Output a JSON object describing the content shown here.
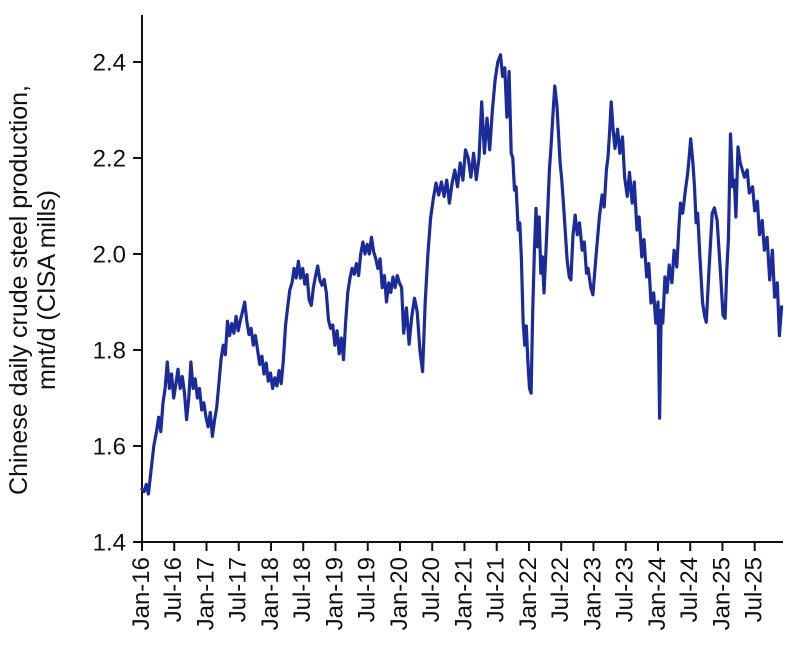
{
  "figure": {
    "background": "#ffffff",
    "axis_color": "#111111",
    "gridlines": false,
    "legend": false
  },
  "chart_data": {
    "type": "line",
    "title": "",
    "xlabel": "",
    "ylabel_line1": "Chinese daily crude steel production,",
    "ylabel_line2": "mnt/d (CISA mills)",
    "series_name": "Chinese daily crude steel production, CISA mills (mnt/d)",
    "line_color": "#1B2B99",
    "ylim": [
      1.4,
      2.45
    ],
    "y_ticks": [
      "1.4",
      "1.6",
      "1.8",
      "2.0",
      "2.2",
      "2.4"
    ],
    "x_tick_labels": [
      "Jan-16",
      "Jul-16",
      "Jan-17",
      "Jul-17",
      "Jan-18",
      "Jul-18",
      "Jan-19",
      "Jul-19",
      "Jan-20",
      "Jul-20",
      "Jan-21",
      "Jul-21",
      "Jan-22",
      "Jul-22",
      "Jan-23",
      "Jul-23",
      "Jan-24",
      "Jul-24",
      "Jan-25",
      "Jul-25"
    ],
    "x_unit": "months since Jan-2016",
    "x_tick_step_months": 6,
    "points": [
      [
        0,
        1.51
      ],
      [
        0.4,
        1.505
      ],
      [
        0.8,
        1.52
      ],
      [
        1.2,
        1.5
      ],
      [
        1.7,
        1.55
      ],
      [
        2.2,
        1.6
      ],
      [
        2.7,
        1.63
      ],
      [
        3.1,
        1.66
      ],
      [
        3.5,
        1.63
      ],
      [
        3.9,
        1.69
      ],
      [
        4.3,
        1.72
      ],
      [
        4.7,
        1.775
      ],
      [
        5.1,
        1.72
      ],
      [
        5.5,
        1.75
      ],
      [
        5.9,
        1.7
      ],
      [
        6.3,
        1.73
      ],
      [
        6.7,
        1.76
      ],
      [
        7.1,
        1.72
      ],
      [
        7.5,
        1.745
      ],
      [
        7.9,
        1.71
      ],
      [
        8.3,
        1.655
      ],
      [
        8.7,
        1.7
      ],
      [
        9.1,
        1.775
      ],
      [
        9.5,
        1.72
      ],
      [
        9.9,
        1.74
      ],
      [
        10.3,
        1.7
      ],
      [
        10.7,
        1.72
      ],
      [
        11.1,
        1.675
      ],
      [
        11.5,
        1.69
      ],
      [
        11.9,
        1.66
      ],
      [
        12.3,
        1.64
      ],
      [
        12.7,
        1.67
      ],
      [
        13.1,
        1.62
      ],
      [
        13.5,
        1.655
      ],
      [
        13.9,
        1.68
      ],
      [
        14.3,
        1.73
      ],
      [
        14.7,
        1.78
      ],
      [
        15.1,
        1.81
      ],
      [
        15.5,
        1.79
      ],
      [
        15.9,
        1.86
      ],
      [
        16.3,
        1.83
      ],
      [
        16.7,
        1.855
      ],
      [
        17.1,
        1.835
      ],
      [
        17.5,
        1.87
      ],
      [
        17.9,
        1.84
      ],
      [
        18.3,
        1.862
      ],
      [
        18.7,
        1.88
      ],
      [
        19.1,
        1.9
      ],
      [
        19.5,
        1.86
      ],
      [
        19.9,
        1.832
      ],
      [
        20.3,
        1.845
      ],
      [
        20.7,
        1.81
      ],
      [
        21.1,
        1.83
      ],
      [
        21.5,
        1.8
      ],
      [
        21.9,
        1.77
      ],
      [
        22.3,
        1.787
      ],
      [
        22.7,
        1.75
      ],
      [
        23.1,
        1.773
      ],
      [
        23.5,
        1.735
      ],
      [
        23.9,
        1.752
      ],
      [
        24.3,
        1.72
      ],
      [
        24.7,
        1.742
      ],
      [
        25.1,
        1.725
      ],
      [
        25.5,
        1.757
      ],
      [
        25.9,
        1.73
      ],
      [
        26.3,
        1.78
      ],
      [
        26.7,
        1.85
      ],
      [
        27.1,
        1.89
      ],
      [
        27.5,
        1.925
      ],
      [
        27.9,
        1.94
      ],
      [
        28.3,
        1.97
      ],
      [
        28.7,
        1.95
      ],
      [
        29.1,
        1.985
      ],
      [
        29.5,
        1.95
      ],
      [
        29.9,
        1.97
      ],
      [
        30.3,
        1.937
      ],
      [
        30.7,
        1.957
      ],
      [
        31.1,
        1.905
      ],
      [
        31.5,
        1.893
      ],
      [
        31.9,
        1.93
      ],
      [
        32.3,
        1.955
      ],
      [
        32.7,
        1.975
      ],
      [
        33.1,
        1.945
      ],
      [
        33.5,
        1.935
      ],
      [
        33.9,
        1.947
      ],
      [
        34.3,
        1.92
      ],
      [
        34.7,
        1.862
      ],
      [
        35.1,
        1.845
      ],
      [
        35.5,
        1.852
      ],
      [
        35.9,
        1.81
      ],
      [
        36.3,
        1.84
      ],
      [
        36.7,
        1.792
      ],
      [
        37.1,
        1.825
      ],
      [
        37.5,
        1.78
      ],
      [
        37.9,
        1.86
      ],
      [
        38.3,
        1.92
      ],
      [
        38.7,
        1.95
      ],
      [
        39.1,
        1.97
      ],
      [
        39.5,
        1.958
      ],
      [
        39.9,
        1.98
      ],
      [
        40.3,
        1.955
      ],
      [
        40.7,
        2.0
      ],
      [
        41.1,
        2.025
      ],
      [
        41.5,
        2.0
      ],
      [
        41.9,
        2.02
      ],
      [
        42.3,
        2.0
      ],
      [
        42.7,
        2.035
      ],
      [
        43.1,
        2.005
      ],
      [
        43.5,
        1.99
      ],
      [
        43.9,
        1.97
      ],
      [
        44.3,
        1.99
      ],
      [
        44.7,
        1.93
      ],
      [
        45.1,
        1.955
      ],
      [
        45.5,
        1.9
      ],
      [
        45.9,
        1.94
      ],
      [
        46.3,
        1.92
      ],
      [
        46.7,
        1.952
      ],
      [
        47.1,
        1.93
      ],
      [
        47.5,
        1.955
      ],
      [
        47.9,
        1.94
      ],
      [
        48.3,
        1.93
      ],
      [
        48.7,
        1.835
      ],
      [
        49.2,
        1.888
      ],
      [
        49.7,
        1.812
      ],
      [
        50.2,
        1.87
      ],
      [
        50.7,
        1.908
      ],
      [
        51.2,
        1.88
      ],
      [
        51.7,
        1.8
      ],
      [
        52.2,
        1.755
      ],
      [
        52.7,
        1.9
      ],
      [
        53.2,
        2.0
      ],
      [
        53.7,
        2.075
      ],
      [
        54.2,
        2.115
      ],
      [
        54.7,
        2.148
      ],
      [
        55.2,
        2.123
      ],
      [
        55.7,
        2.15
      ],
      [
        56.2,
        2.12
      ],
      [
        56.7,
        2.154
      ],
      [
        57.2,
        2.106
      ],
      [
        57.7,
        2.148
      ],
      [
        58.2,
        2.175
      ],
      [
        58.7,
        2.14
      ],
      [
        59.2,
        2.19
      ],
      [
        59.7,
        2.154
      ],
      [
        60.2,
        2.217
      ],
      [
        60.7,
        2.2
      ],
      [
        61.2,
        2.16
      ],
      [
        61.7,
        2.21
      ],
      [
        62.2,
        2.155
      ],
      [
        62.7,
        2.2
      ],
      [
        63.2,
        2.317
      ],
      [
        63.7,
        2.21
      ],
      [
        64.2,
        2.283
      ],
      [
        64.7,
        2.217
      ],
      [
        65.2,
        2.3
      ],
      [
        65.7,
        2.363
      ],
      [
        66.2,
        2.4
      ],
      [
        66.7,
        2.415
      ],
      [
        67.1,
        2.37
      ],
      [
        67.5,
        2.388
      ],
      [
        67.9,
        2.285
      ],
      [
        68.3,
        2.38
      ],
      [
        68.7,
        2.21
      ],
      [
        69.0,
        2.2
      ],
      [
        69.3,
        2.133
      ],
      [
        69.6,
        2.14
      ],
      [
        70.0,
        2.05
      ],
      [
        70.3,
        2.065
      ],
      [
        70.6,
        1.99
      ],
      [
        70.9,
        1.86
      ],
      [
        71.2,
        1.81
      ],
      [
        71.5,
        1.85
      ],
      [
        71.8,
        1.775
      ],
      [
        72.1,
        1.72
      ],
      [
        72.4,
        1.71
      ],
      [
        72.7,
        1.88
      ],
      [
        73.0,
        2.0
      ],
      [
        73.3,
        2.095
      ],
      [
        73.6,
        2.015
      ],
      [
        73.9,
        2.077
      ],
      [
        74.2,
        1.96
      ],
      [
        74.5,
        1.994
      ],
      [
        74.8,
        1.919
      ],
      [
        75.3,
        2.04
      ],
      [
        75.8,
        2.175
      ],
      [
        76.1,
        2.223
      ],
      [
        76.5,
        2.3
      ],
      [
        76.8,
        2.35
      ],
      [
        77.2,
        2.31
      ],
      [
        77.5,
        2.25
      ],
      [
        77.8,
        2.19
      ],
      [
        78.1,
        2.154
      ],
      [
        78.4,
        2.106
      ],
      [
        78.8,
        2.04
      ],
      [
        79.1,
        1.988
      ],
      [
        79.5,
        1.952
      ],
      [
        79.8,
        1.946
      ],
      [
        80.2,
        2.04
      ],
      [
        80.6,
        2.081
      ],
      [
        81.0,
        2.04
      ],
      [
        81.4,
        2.065
      ],
      [
        81.9,
        2.008
      ],
      [
        82.3,
        2.025
      ],
      [
        82.7,
        1.96
      ],
      [
        83.0,
        1.97
      ],
      [
        83.5,
        1.93
      ],
      [
        83.9,
        1.915
      ],
      [
        84.5,
        2.0
      ],
      [
        85.1,
        2.077
      ],
      [
        85.6,
        2.123
      ],
      [
        86.0,
        2.098
      ],
      [
        86.4,
        2.175
      ],
      [
        86.7,
        2.202
      ],
      [
        87.0,
        2.254
      ],
      [
        87.3,
        2.317
      ],
      [
        87.7,
        2.254
      ],
      [
        88.0,
        2.22
      ],
      [
        88.5,
        2.26
      ],
      [
        88.9,
        2.21
      ],
      [
        89.4,
        2.244
      ],
      [
        89.8,
        2.16
      ],
      [
        90.3,
        2.12
      ],
      [
        90.7,
        2.17
      ],
      [
        91.2,
        2.106
      ],
      [
        91.6,
        2.15
      ],
      [
        92.1,
        2.05
      ],
      [
        92.5,
        2.077
      ],
      [
        93.0,
        1.994
      ],
      [
        93.4,
        2.03
      ],
      [
        93.9,
        1.952
      ],
      [
        94.3,
        1.98
      ],
      [
        94.7,
        1.898
      ],
      [
        95.2,
        1.919
      ],
      [
        95.6,
        1.856
      ],
      [
        96.0,
        1.9
      ],
      [
        96.3,
        1.658
      ],
      [
        96.6,
        1.883
      ],
      [
        96.9,
        1.856
      ],
      [
        97.3,
        1.952
      ],
      [
        97.7,
        1.92
      ],
      [
        98.1,
        1.977
      ],
      [
        98.6,
        1.94
      ],
      [
        99.0,
        2.008
      ],
      [
        99.5,
        1.973
      ],
      [
        99.9,
        2.056
      ],
      [
        100.2,
        2.106
      ],
      [
        100.6,
        2.085
      ],
      [
        101.1,
        2.133
      ],
      [
        101.5,
        2.165
      ],
      [
        101.8,
        2.2
      ],
      [
        102.1,
        2.24
      ],
      [
        102.5,
        2.19
      ],
      [
        102.8,
        2.14
      ],
      [
        103.1,
        2.065
      ],
      [
        103.4,
        2.085
      ],
      [
        103.8,
        1.994
      ],
      [
        104.3,
        1.898
      ],
      [
        104.7,
        1.87
      ],
      [
        105.0,
        1.858
      ],
      [
        105.5,
        1.967
      ],
      [
        106.1,
        2.085
      ],
      [
        106.5,
        2.096
      ],
      [
        107.0,
        2.07
      ],
      [
        107.6,
        1.967
      ],
      [
        108.1,
        1.873
      ],
      [
        108.5,
        1.866
      ],
      [
        108.8,
        1.967
      ],
      [
        109.1,
        2.03
      ],
      [
        109.5,
        2.25
      ],
      [
        109.9,
        2.14
      ],
      [
        110.2,
        2.154
      ],
      [
        110.5,
        2.077
      ],
      [
        110.9,
        2.223
      ],
      [
        111.3,
        2.19
      ],
      [
        112.1,
        2.16
      ],
      [
        112.6,
        2.175
      ],
      [
        113.0,
        2.127
      ],
      [
        113.6,
        2.14
      ],
      [
        114.0,
        2.09
      ],
      [
        114.5,
        2.11
      ],
      [
        114.9,
        2.04
      ],
      [
        115.4,
        2.07
      ],
      [
        115.8,
        2.008
      ],
      [
        116.3,
        2.035
      ],
      [
        116.8,
        1.946
      ],
      [
        117.3,
        2.008
      ],
      [
        117.7,
        1.91
      ],
      [
        118.2,
        1.94
      ],
      [
        118.6,
        1.83
      ],
      [
        119.0,
        1.89
      ]
    ]
  }
}
